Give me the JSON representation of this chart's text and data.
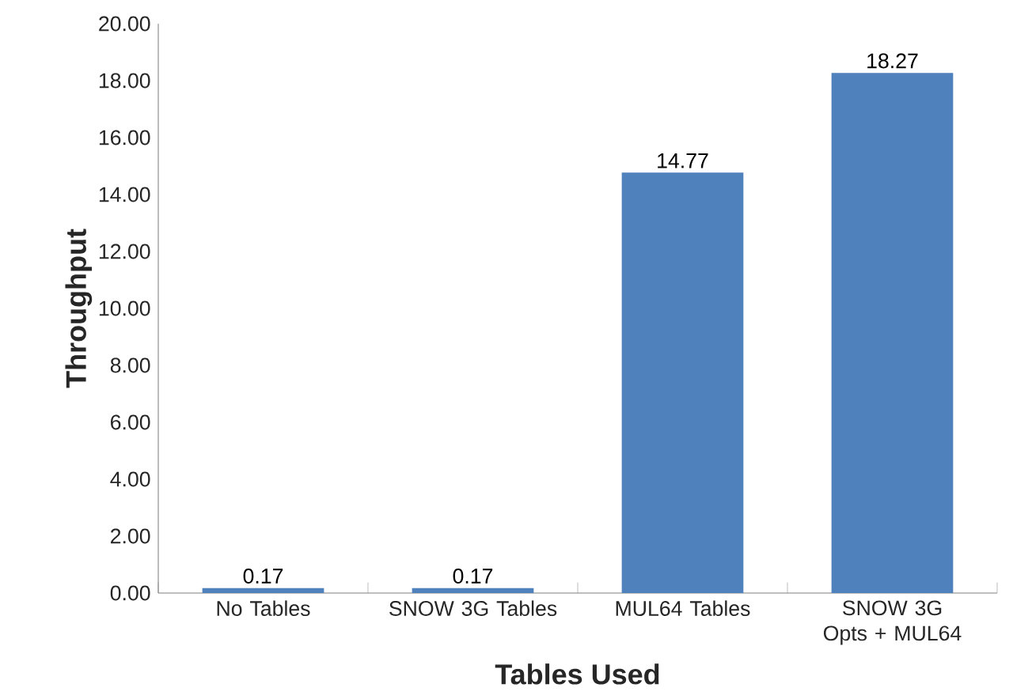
{
  "chart_data": {
    "type": "bar",
    "xlabel": "Tables Used",
    "ylabel": "Throughput",
    "categories": [
      "No Tables",
      "SNOW 3G Tables",
      "MUL64 Tables",
      "SNOW 3G Opts + MUL64"
    ],
    "values": [
      0.17,
      0.17,
      14.77,
      18.27
    ],
    "value_labels": [
      "0.17",
      "0.17",
      "14.77",
      "18.27"
    ],
    "color": "#4f81bd",
    "ylim": [
      0,
      20
    ],
    "yticks": [
      {
        "value": 0,
        "label": "0.00"
      },
      {
        "value": 2,
        "label": "2.00"
      },
      {
        "value": 4,
        "label": "4.00"
      },
      {
        "value": 6,
        "label": "6.00"
      },
      {
        "value": 8,
        "label": "8.00"
      },
      {
        "value": 10,
        "label": "10.00"
      },
      {
        "value": 12,
        "label": "12.00"
      },
      {
        "value": 14,
        "label": "14.00"
      },
      {
        "value": 16,
        "label": "16.00"
      },
      {
        "value": 18,
        "label": "18.00"
      },
      {
        "value": 20,
        "label": "20.00"
      }
    ],
    "grid": false
  }
}
